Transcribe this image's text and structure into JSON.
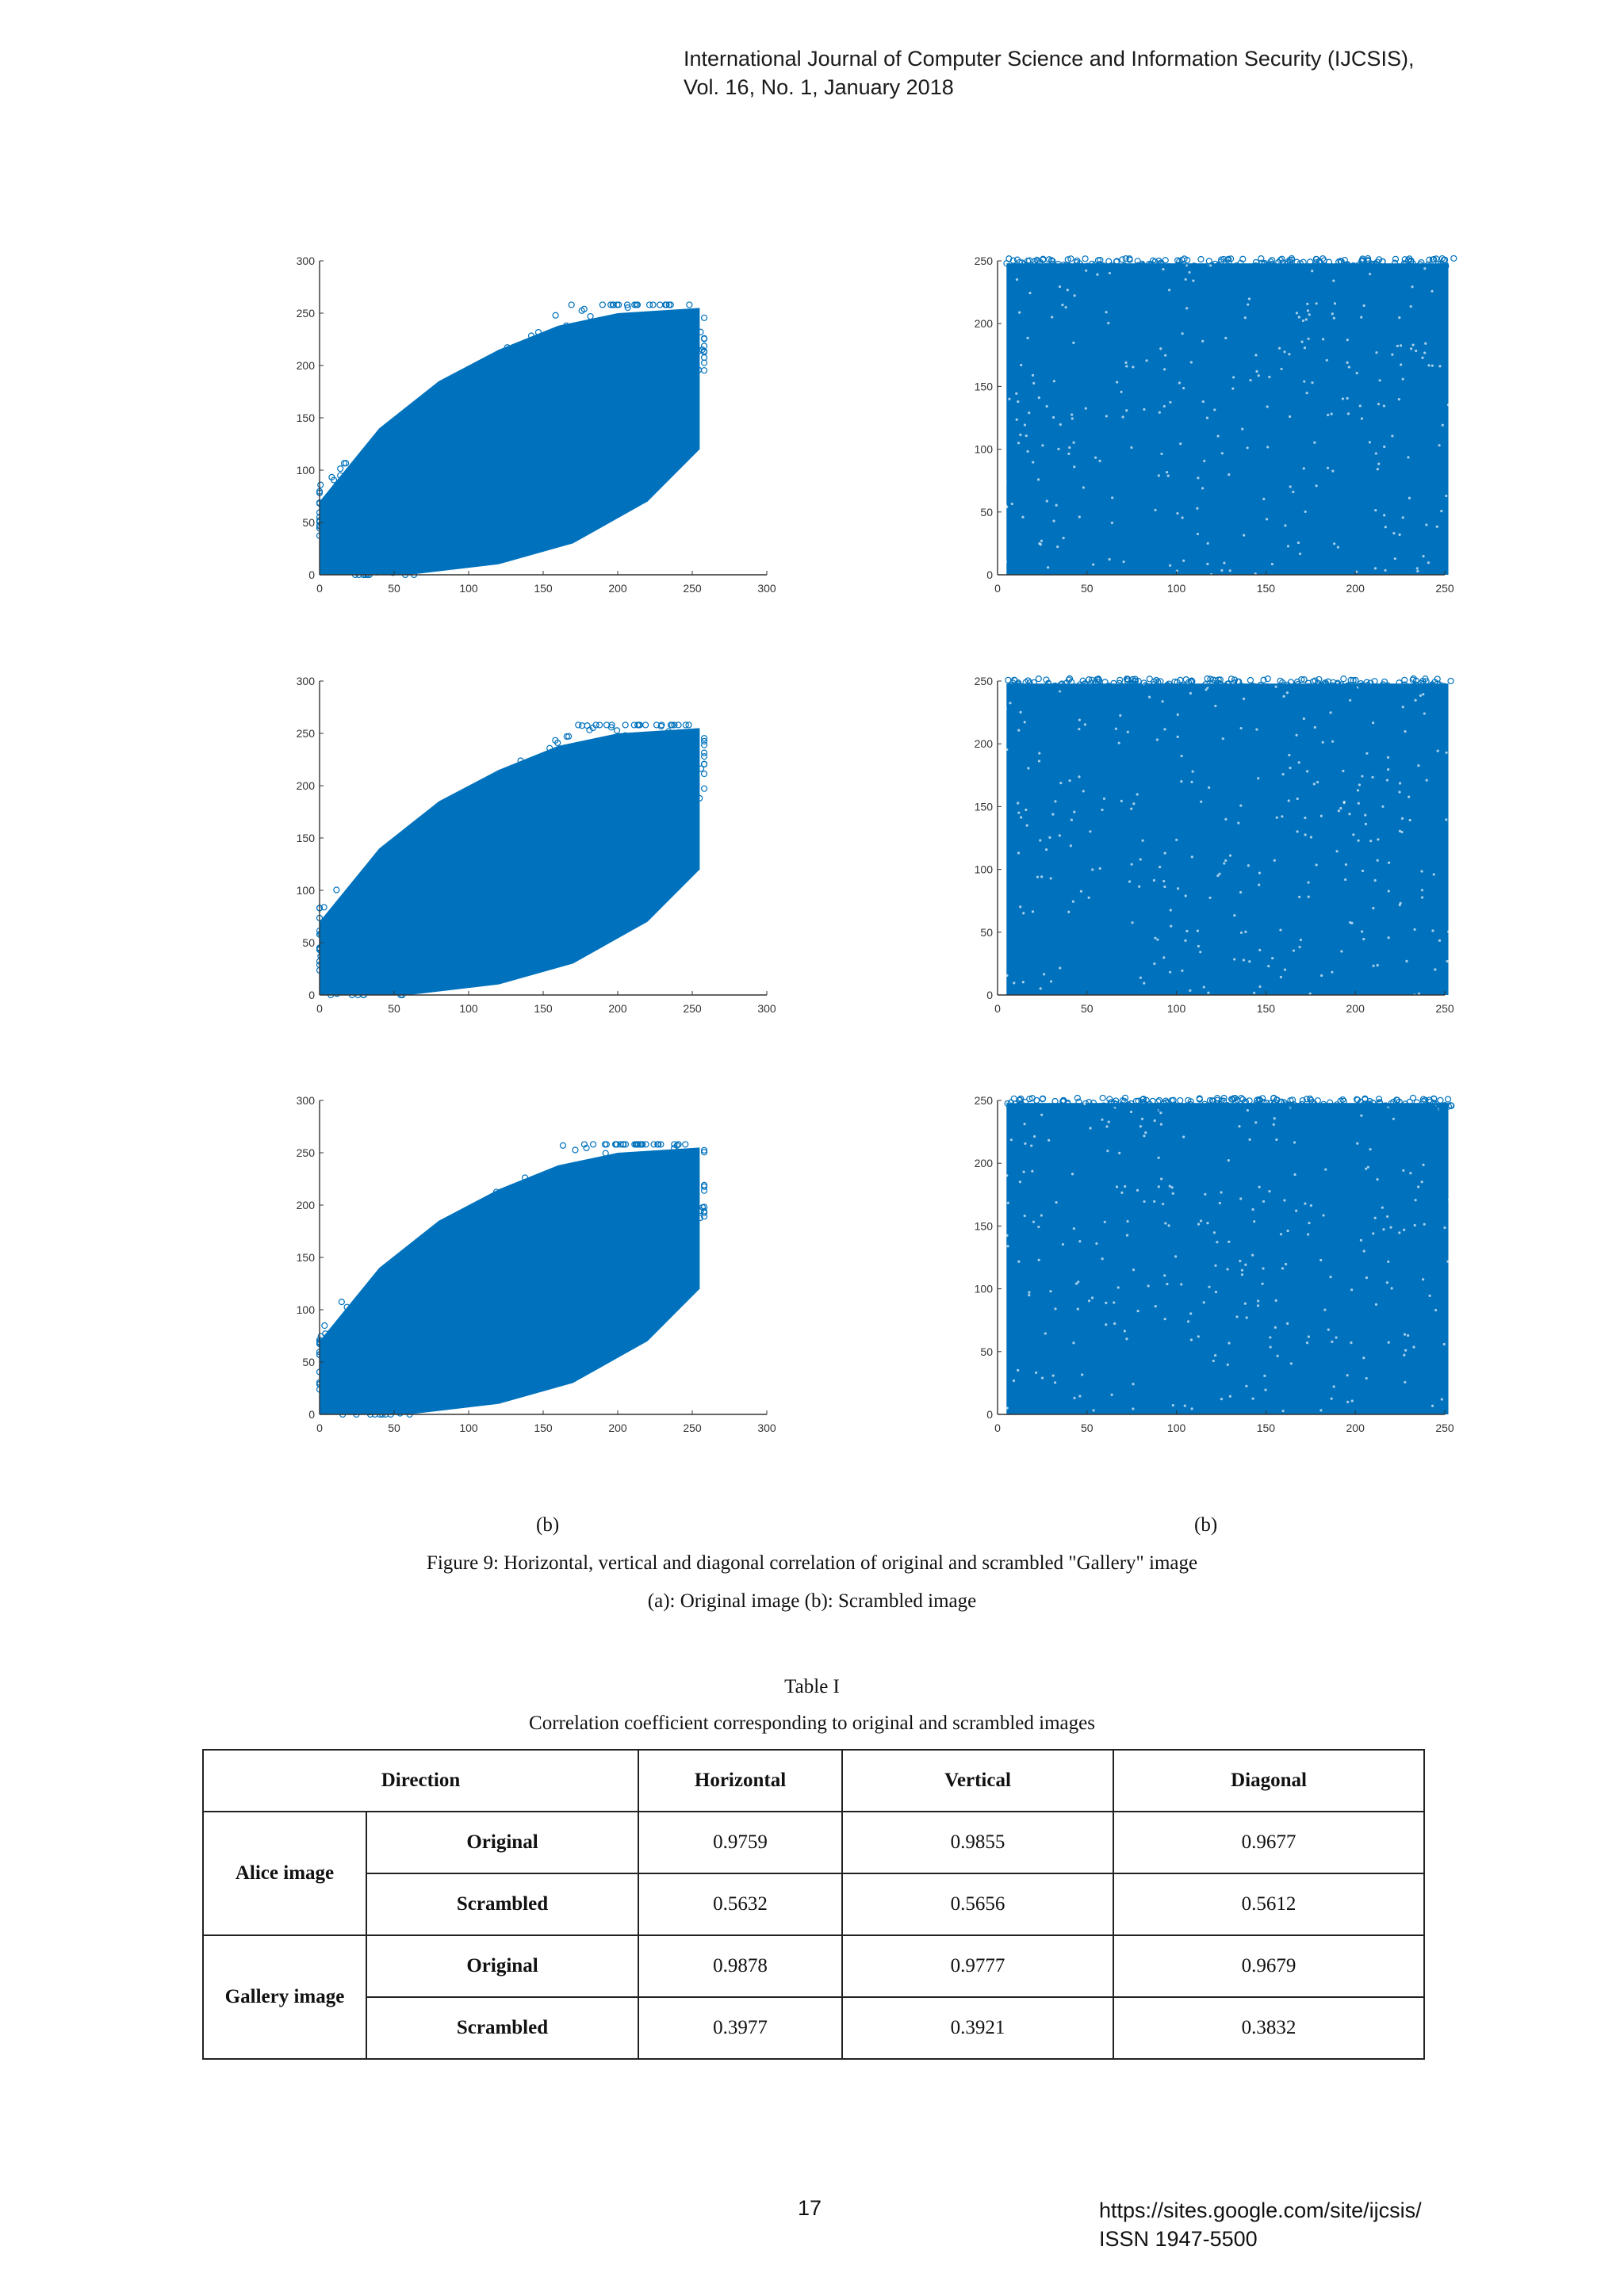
{
  "header": {
    "line1": "International Journal of Computer Science and Information Security (IJCSIS),",
    "line2": "Vol. 16, No. 1, January 2018"
  },
  "figure": {
    "panel_labels": [
      "(b)",
      "(b)"
    ],
    "caption": "Figure 9: Horizontal, vertical and diagonal correlation of original and scrambled \"Gallery\" image",
    "subcaption": "(a):  Original image  (b): Scrambled image"
  },
  "chart_data": [
    {
      "type": "scatter",
      "id": "orig-horizontal",
      "xlim": [
        0,
        300
      ],
      "ylim": [
        0,
        300
      ],
      "xticks": [
        "0",
        "50",
        "100",
        "150",
        "200",
        "250",
        "300"
      ],
      "yticks": [
        "0",
        "50",
        "100",
        "150",
        "200",
        "250",
        "300"
      ],
      "marker_color": "#0072BD",
      "pattern": "diagonal",
      "correlation": 0.9878
    },
    {
      "type": "scatter",
      "id": "scr-horizontal",
      "xlim": [
        0,
        250
      ],
      "ylim": [
        0,
        250
      ],
      "xticks": [
        "0",
        "50",
        "100",
        "150",
        "200",
        "250"
      ],
      "yticks": [
        "0",
        "50",
        "100",
        "150",
        "200",
        "250"
      ],
      "marker_color": "#0072BD",
      "pattern": "uniform",
      "correlation": 0.3977
    },
    {
      "type": "scatter",
      "id": "orig-vertical",
      "xlim": [
        0,
        300
      ],
      "ylim": [
        0,
        300
      ],
      "xticks": [
        "0",
        "50",
        "100",
        "150",
        "200",
        "250",
        "300"
      ],
      "yticks": [
        "0",
        "50",
        "100",
        "150",
        "200",
        "250",
        "300"
      ],
      "marker_color": "#0072BD",
      "pattern": "diagonal",
      "correlation": 0.9777
    },
    {
      "type": "scatter",
      "id": "scr-vertical",
      "xlim": [
        0,
        250
      ],
      "ylim": [
        0,
        250
      ],
      "xticks": [
        "0",
        "50",
        "100",
        "150",
        "200",
        "250"
      ],
      "yticks": [
        "0",
        "50",
        "100",
        "150",
        "200",
        "250"
      ],
      "marker_color": "#0072BD",
      "pattern": "uniform",
      "correlation": 0.3921
    },
    {
      "type": "scatter",
      "id": "orig-diagonal",
      "xlim": [
        0,
        300
      ],
      "ylim": [
        0,
        300
      ],
      "xticks": [
        "0",
        "50",
        "100",
        "150",
        "200",
        "250",
        "300"
      ],
      "yticks": [
        "0",
        "50",
        "100",
        "150",
        "200",
        "250",
        "300"
      ],
      "marker_color": "#0072BD",
      "pattern": "diagonal",
      "correlation": 0.9679
    },
    {
      "type": "scatter",
      "id": "scr-diagonal",
      "xlim": [
        0,
        250
      ],
      "ylim": [
        0,
        250
      ],
      "xticks": [
        "0",
        "50",
        "100",
        "150",
        "200",
        "250"
      ],
      "yticks": [
        "0",
        "50",
        "100",
        "150",
        "200",
        "250"
      ],
      "marker_color": "#0072BD",
      "pattern": "uniform",
      "correlation": 0.3832
    }
  ],
  "table": {
    "title": "Table I",
    "subtitle": "Correlation coefficient corresponding to original and scrambled images",
    "headers": [
      "Direction",
      "Horizontal",
      "Vertical",
      "Diagonal"
    ],
    "groups": [
      {
        "label": "Alice image",
        "rows": [
          {
            "label": "Original",
            "values": [
              "0.9759",
              "0.9855",
              "0.9677"
            ]
          },
          {
            "label": "Scrambled",
            "values": [
              "0.5632",
              "0.5656",
              "0.5612"
            ]
          }
        ]
      },
      {
        "label": "Gallery image",
        "rows": [
          {
            "label": "Original",
            "values": [
              "0.9878",
              "0.9777",
              "0.9679"
            ]
          },
          {
            "label": "Scrambled",
            "values": [
              "0.3977",
              "0.3921",
              "0.3832"
            ]
          }
        ]
      }
    ]
  },
  "footer": {
    "page_number": "17",
    "url": "https://sites.google.com/site/ijcsis/",
    "issn": "ISSN 1947-5500"
  }
}
